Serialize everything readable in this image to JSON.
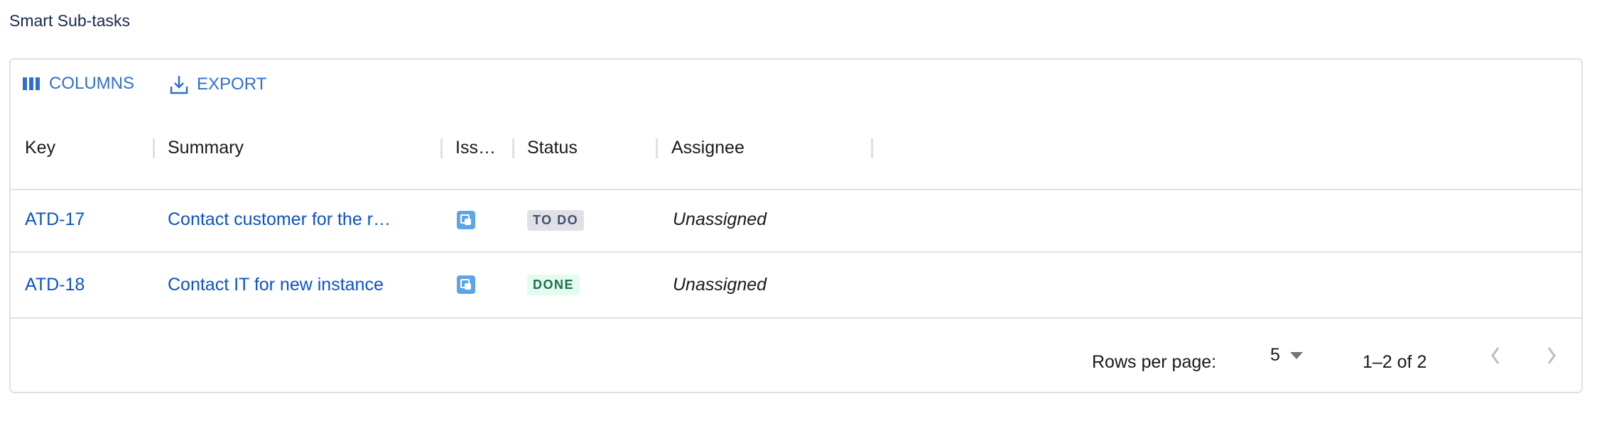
{
  "title": "Smart Sub-tasks",
  "toolbar": {
    "columns_label": "COLUMNS",
    "export_label": "EXPORT"
  },
  "columns": [
    "Key",
    "Summary",
    "Iss…",
    "Status",
    "Assignee"
  ],
  "rows": [
    {
      "key": "ATD-17",
      "summary": "Contact customer for the r…",
      "issue_type": "subtask-icon",
      "status": "TO DO",
      "assignee": "Unassigned"
    },
    {
      "key": "ATD-18",
      "summary": "Contact IT for new instance",
      "issue_type": "subtask-icon",
      "status": "DONE",
      "assignee": "Unassigned"
    }
  ],
  "footer": {
    "rows_per_page_label": "Rows per page:",
    "rows_per_page": "5",
    "range": "1–2 of 2"
  },
  "colors": {
    "accent": "#2f6fce",
    "link": "#0c53c9",
    "todo_bg": "#dfe1e6",
    "done_bg": "#e3fcef",
    "done_text": "#216e4e"
  }
}
